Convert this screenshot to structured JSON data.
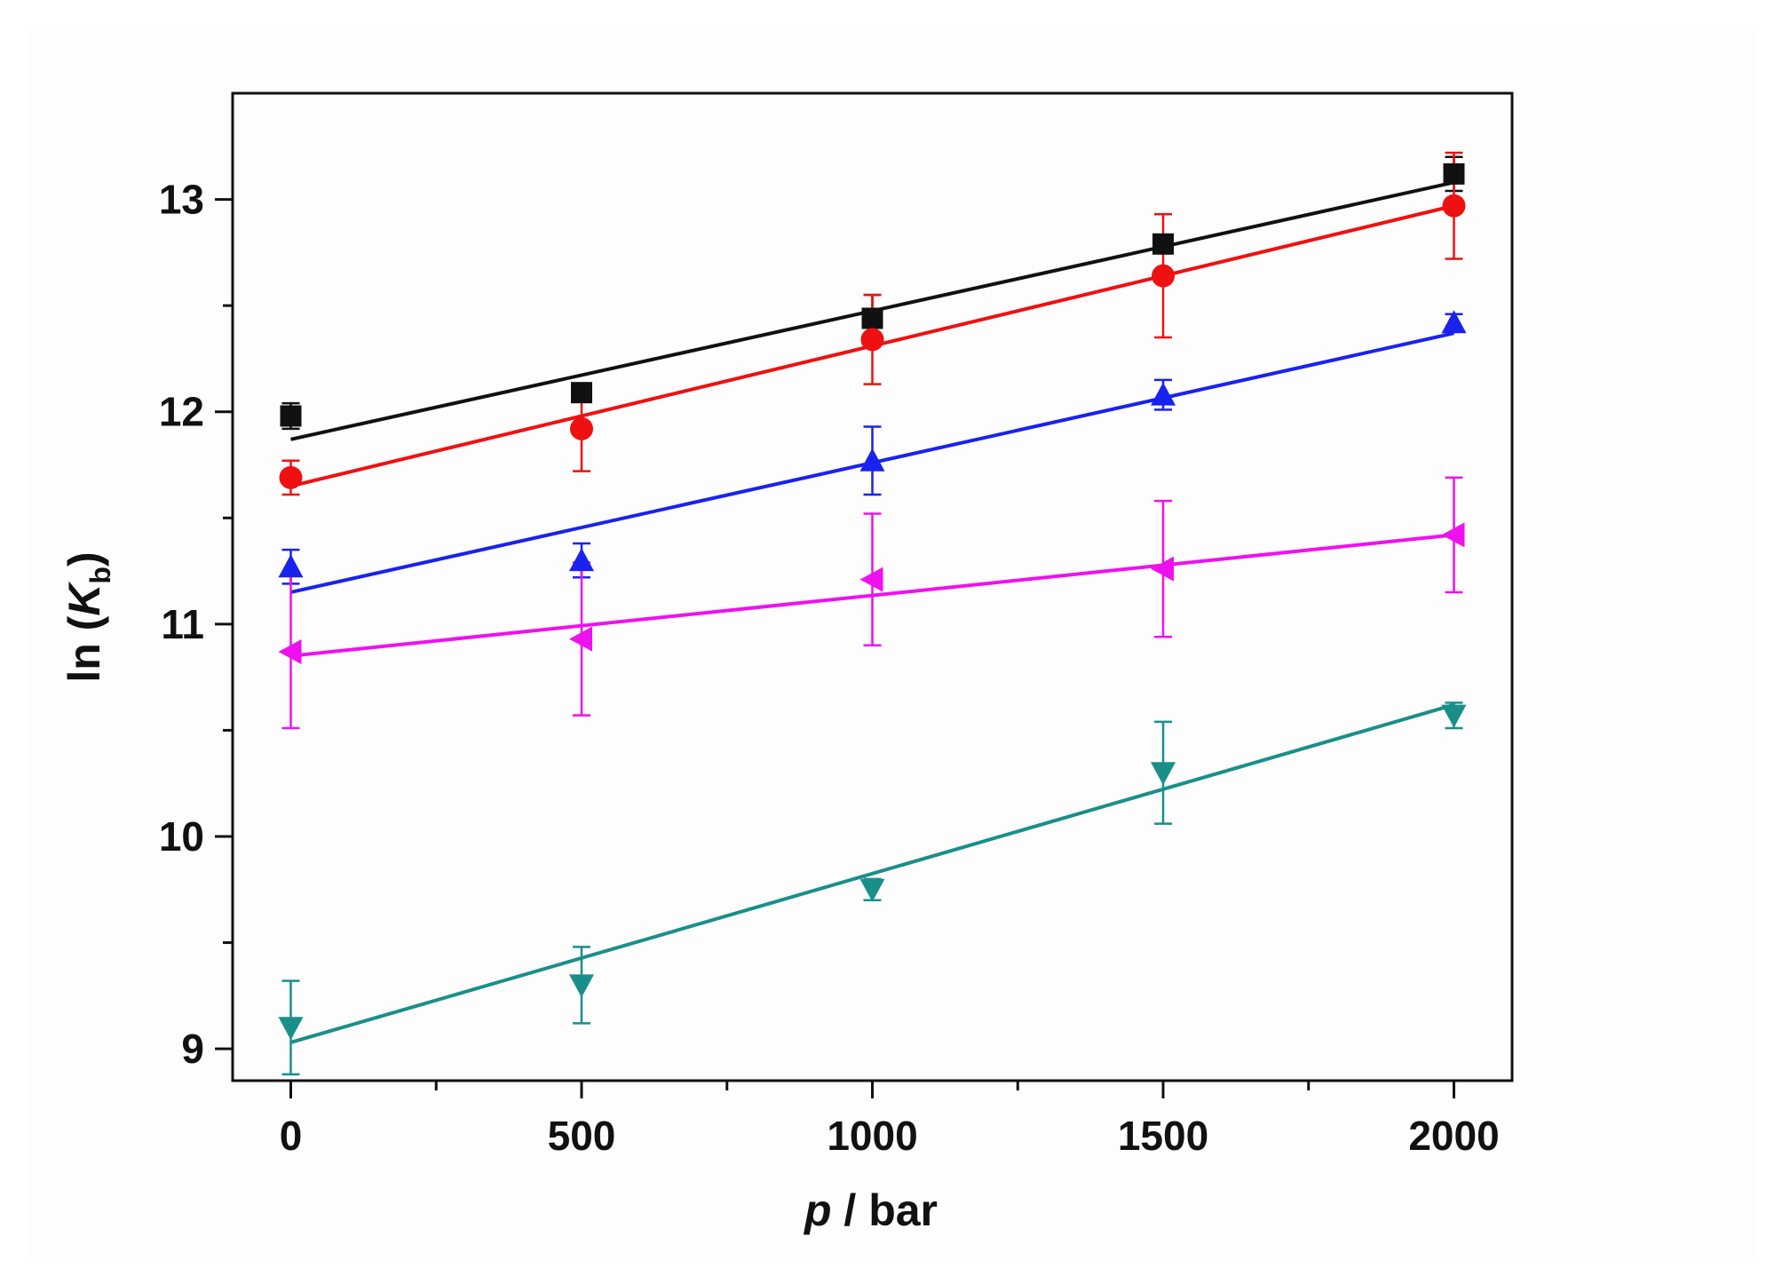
{
  "chart_data": {
    "type": "scatter",
    "title": "",
    "xlabel": {
      "italic": "p",
      "rest": " / bar"
    },
    "ylabel": {
      "prefix": "ln (",
      "italic": "K",
      "subscript": "b",
      "suffix": ")"
    },
    "xlim": [
      -100,
      2100
    ],
    "ylim": [
      8.85,
      13.5
    ],
    "x_ticks": [
      0,
      500,
      1000,
      1500,
      2000
    ],
    "x_tick_labels": [
      "0",
      "500",
      "1000",
      "1500",
      "2000"
    ],
    "x_minor_ticks": [
      250,
      750,
      1250,
      1750
    ],
    "y_ticks": [
      9,
      10,
      11,
      12,
      13
    ],
    "y_tick_labels": [
      "9",
      "10",
      "11",
      "12",
      "13"
    ],
    "y_minor_ticks": [
      9.5,
      10.5,
      11.5,
      12.5
    ],
    "grid": false,
    "legend": "none",
    "x": [
      0,
      500,
      1000,
      1500,
      2000
    ],
    "series": [
      {
        "name": "black squares",
        "color": "#111111",
        "marker": "square",
        "values": [
          11.98,
          12.09,
          12.44,
          12.79,
          13.12
        ],
        "errors": [
          0.06,
          0.04,
          0.11,
          0.03,
          0.08
        ],
        "fit": [
          11.87,
          13.08
        ]
      },
      {
        "name": "red circles",
        "color": "#ee1111",
        "marker": "circle",
        "values": [
          11.69,
          11.92,
          12.34,
          12.64,
          12.97
        ],
        "errors": [
          0.08,
          0.2,
          0.21,
          0.29,
          0.25
        ],
        "fit": [
          11.65,
          12.97
        ]
      },
      {
        "name": "blue up-triangles",
        "color": "#1a22ee",
        "marker": "triangle-up",
        "values": [
          11.27,
          11.3,
          11.77,
          12.08,
          12.42
        ],
        "errors": [
          0.08,
          0.08,
          0.16,
          0.07,
          0.04
        ],
        "fit": [
          11.15,
          12.37
        ]
      },
      {
        "name": "magenta left-triangles",
        "color": "#ee11ee",
        "marker": "triangle-left",
        "values": [
          10.87,
          10.93,
          11.21,
          11.26,
          11.42
        ],
        "errors": [
          0.36,
          0.36,
          0.31,
          0.32,
          0.27
        ],
        "fit": [
          10.85,
          11.42
        ]
      },
      {
        "name": "teal down-triangles",
        "color": "#1a8f8a",
        "marker": "triangle-down",
        "values": [
          9.1,
          9.3,
          9.75,
          10.3,
          10.57
        ],
        "errors": [
          0.22,
          0.18,
          0.05,
          0.24,
          0.06
        ],
        "fit": [
          9.03,
          10.62
        ]
      }
    ]
  }
}
